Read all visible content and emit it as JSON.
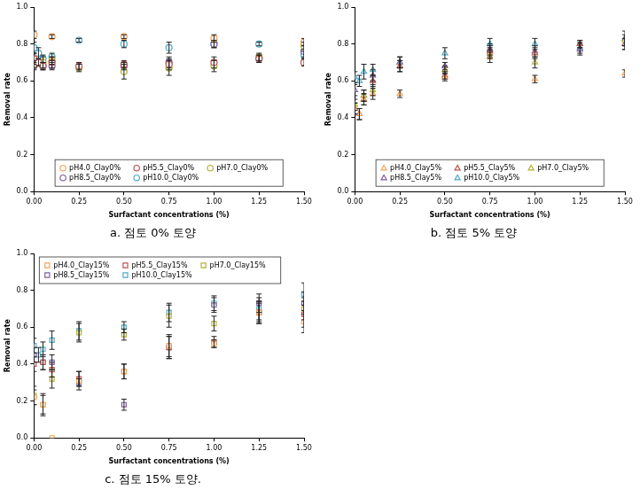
{
  "chart_data": [
    {
      "type": "scatter",
      "title": "a. 점토 0% 토양",
      "x_label": "Surfactant concentrations (%)",
      "y_label": "Removal rate",
      "x": [
        0,
        0.025,
        0.05,
        0.1,
        0.25,
        0.5,
        0.75,
        1.0,
        1.25,
        1.5
      ],
      "xlim": [
        0,
        1.5
      ],
      "xticks": [
        {
          "value": 0,
          "label": "0.00"
        },
        {
          "value": 0.25,
          "label": "0.25"
        },
        {
          "value": 0.5,
          "label": "0.50"
        },
        {
          "value": 0.75,
          "label": "0.75"
        },
        {
          "value": 1,
          "label": "1.00"
        },
        {
          "value": 1.25,
          "label": "1.25"
        },
        {
          "value": 1.5,
          "label": "1.50"
        }
      ],
      "ylim": [
        0,
        1
      ],
      "yticks": [
        {
          "value": 0,
          "label": "0.0"
        },
        0.2,
        0.4,
        0.6,
        0.8,
        {
          "value": 1,
          "label": "1.0"
        }
      ],
      "grid": false,
      "legend": "lower center",
      "marker": "circle",
      "series": [
        {
          "name": "pH4.0_Clay0%",
          "color": "#f5a455",
          "values": [
            0.85,
            null,
            null,
            0.84,
            null,
            0.84,
            null,
            0.83,
            null,
            0.81
          ],
          "errors": [
            0.02,
            null,
            null,
            0.01,
            null,
            0.01,
            null,
            0.02,
            null,
            0.02
          ]
        },
        {
          "name": "pH5.5_Clay0%",
          "color": "#c0504d",
          "values": [
            0.72,
            0.7,
            0.68,
            0.7,
            0.68,
            0.69,
            0.69,
            0.7,
            0.72,
            0.7
          ],
          "errors": [
            0.03,
            0.02,
            0.02,
            0.03,
            0.02,
            0.02,
            0.03,
            0.03,
            0.02,
            0.02
          ]
        },
        {
          "name": "pH7.0_Clay0%",
          "color": "#b3b334",
          "values": [
            0.69,
            null,
            0.7,
            0.71,
            0.67,
            0.65,
            0.67,
            0.68,
            0.73,
            0.79
          ],
          "errors": [
            0.02,
            null,
            0.03,
            0.02,
            0.02,
            0.04,
            0.04,
            0.03,
            0.02,
            0.02
          ]
        },
        {
          "name": "pH8.5_Clay0%",
          "color": "#7f5fa0",
          "values": [
            0.68,
            null,
            0.68,
            0.68,
            null,
            0.68,
            0.7,
            0.8,
            0.72,
            0.76
          ],
          "errors": [
            0.02,
            null,
            0.02,
            0.02,
            null,
            0.02,
            0.03,
            0.02,
            0.02,
            0.03
          ]
        },
        {
          "name": "pH10.0_Clay0%",
          "color": "#4bacc6",
          "values": [
            0.78,
            0.75,
            0.72,
            0.73,
            0.82,
            0.8,
            0.78,
            0.8,
            0.8,
            0.74
          ],
          "errors": [
            0.03,
            0.03,
            0.02,
            0.02,
            0.01,
            0.02,
            0.03,
            0.02,
            0.01,
            0.02
          ]
        }
      ]
    },
    {
      "type": "scatter",
      "title": "b. 점토 5% 토양",
      "x_label": "Surfactant concentrations (%)",
      "y_label": "Removal rate",
      "x": [
        0,
        0.025,
        0.05,
        0.1,
        0.25,
        0.5,
        0.75,
        1.0,
        1.25,
        1.5
      ],
      "xlim": [
        0,
        1.5
      ],
      "xticks": [
        {
          "value": 0,
          "label": "0.00"
        },
        {
          "value": 0.25,
          "label": "0.25"
        },
        {
          "value": 0.5,
          "label": "0.50"
        },
        {
          "value": 0.75,
          "label": "0.75"
        },
        {
          "value": 1,
          "label": "1.00"
        },
        {
          "value": 1.25,
          "label": "1.25"
        },
        {
          "value": 1.5,
          "label": "1.50"
        }
      ],
      "ylim": [
        0,
        1
      ],
      "yticks": [
        {
          "value": 0,
          "label": "0.0"
        },
        0.2,
        0.4,
        0.6,
        0.8,
        {
          "value": 1,
          "label": "1.0"
        }
      ],
      "grid": false,
      "legend": "lower center",
      "marker": "triangle",
      "series": [
        {
          "name": "pH4.0_Clay5%",
          "color": "#f5a455",
          "values": [
            0.45,
            0.42,
            0.5,
            0.53,
            0.53,
            0.62,
            0.73,
            0.61,
            null,
            0.64
          ],
          "errors": [
            0.03,
            0.03,
            0.03,
            0.03,
            0.02,
            0.02,
            0.03,
            0.02,
            null,
            0.02
          ]
        },
        {
          "name": "pH5.5_Clay5%",
          "color": "#c0504d",
          "values": [
            0.45,
            0.42,
            0.5,
            0.6,
            0.68,
            0.63,
            0.76,
            0.75,
            0.8,
            0.8
          ],
          "errors": [
            0.03,
            0.03,
            0.03,
            0.03,
            0.03,
            0.02,
            0.03,
            0.03,
            0.02,
            0.03
          ]
        },
        {
          "name": "pH7.0_Clay5%",
          "color": "#b3b334",
          "values": [
            0.47,
            null,
            0.52,
            0.55,
            0.68,
            0.66,
            0.75,
            0.7,
            0.8,
            0.82
          ],
          "errors": [
            0.03,
            null,
            0.03,
            0.03,
            0.03,
            0.02,
            0.03,
            0.03,
            0.02,
            0.03
          ]
        },
        {
          "name": "pH8.5_Clay5%",
          "color": "#7f5fa0",
          "values": [
            0.55,
            null,
            0.52,
            0.63,
            0.7,
            0.68,
            0.77,
            0.76,
            0.77,
            0.83
          ],
          "errors": [
            0.03,
            null,
            0.03,
            0.03,
            0.03,
            0.02,
            0.03,
            0.03,
            0.03,
            0.04
          ]
        },
        {
          "name": "pH10.0_Clay5%",
          "color": "#4bacc6",
          "values": [
            0.62,
            0.6,
            0.65,
            0.66,
            0.7,
            0.75,
            0.8,
            0.8,
            0.78,
            0.8
          ],
          "errors": [
            0.03,
            0.03,
            0.04,
            0.03,
            0.03,
            0.03,
            0.03,
            0.03,
            0.03,
            0.03
          ]
        }
      ]
    },
    {
      "type": "scatter",
      "title": "c. 점토 15% 토양.",
      "x_label": "Surfactant concentrations (%)",
      "y_label": "Removal rate",
      "x": [
        0,
        0.025,
        0.05,
        0.1,
        0.25,
        0.5,
        0.75,
        1.0,
        1.25,
        1.5
      ],
      "xlim": [
        0,
        1.5
      ],
      "xticks": [
        {
          "value": 0,
          "label": "0.00"
        },
        {
          "value": 0.25,
          "label": "0.25"
        },
        {
          "value": 0.5,
          "label": "0.50"
        },
        {
          "value": 0.75,
          "label": "0.75"
        },
        {
          "value": 1,
          "label": "1.00"
        },
        {
          "value": 1.25,
          "label": "1.25"
        },
        {
          "value": 1.5,
          "label": "1.50"
        }
      ],
      "ylim": [
        0,
        1
      ],
      "yticks": [
        {
          "value": 0,
          "label": "0.0"
        },
        0.2,
        0.4,
        0.6,
        0.8,
        {
          "value": 1,
          "label": "1.0"
        }
      ],
      "grid": false,
      "legend": "upper left",
      "marker": "square",
      "series": [
        {
          "name": "pH4.0_Clay15%",
          "color": "#f5a455",
          "values": [
            0.22,
            null,
            0.18,
            0.0,
            0.31,
            0.36,
            0.5,
            0.51,
            0.68,
            0.63
          ],
          "errors": [
            0.04,
            null,
            0.05,
            null,
            0.05,
            0.04,
            0.06,
            0.02,
            0.06,
            0.06
          ]
        },
        {
          "name": "pH5.5_Clay15%",
          "color": "#c0504d",
          "values": [
            0.4,
            null,
            0.41,
            0.37,
            0.32,
            0.36,
            0.49,
            0.52,
            0.68,
            0.67
          ],
          "errors": [
            0.04,
            null,
            0.04,
            0.04,
            0.04,
            0.04,
            0.06,
            0.03,
            0.06,
            0.07
          ]
        },
        {
          "name": "pH7.0_Clay15%",
          "color": "#b3b334",
          "values": [
            0.23,
            null,
            0.18,
            0.32,
            0.57,
            0.56,
            0.66,
            0.62,
            0.68,
            0.7
          ],
          "errors": [
            0.05,
            null,
            0.06,
            0.05,
            0.05,
            0.03,
            0.06,
            0.04,
            0.05,
            0.06
          ]
        },
        {
          "name": "pH8.5_Clay15%",
          "color": "#7f5fa0",
          "values": [
            0.45,
            null,
            0.41,
            0.41,
            0.3,
            0.18,
            0.49,
            0.72,
            0.73,
            0.73
          ],
          "errors": [
            0.04,
            null,
            0.04,
            0.04,
            0.02,
            0.03,
            0.06,
            0.04,
            0.05,
            0.06
          ]
        },
        {
          "name": "pH10.0_Clay15%",
          "color": "#4bacc6",
          "values": [
            0.5,
            0.45,
            0.48,
            0.53,
            0.58,
            0.6,
            0.68,
            0.73,
            0.7,
            0.78
          ],
          "errors": [
            0.04,
            0.04,
            0.04,
            0.05,
            0.05,
            0.03,
            0.05,
            0.04,
            0.06,
            0.06
          ]
        }
      ]
    }
  ]
}
